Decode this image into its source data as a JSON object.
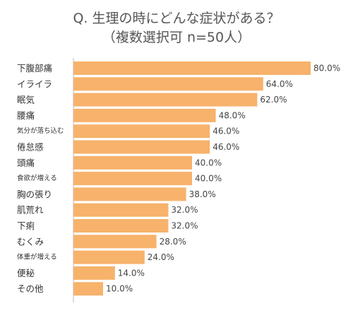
{
  "chart_data": {
    "type": "bar",
    "orientation": "horizontal",
    "title": "Q. 生理の時にどんな症状がある？",
    "subtitle": "（複数選択可 n=50人）",
    "categories": [
      "下腹部痛",
      "イライラ",
      "眠気",
      "腰痛",
      "気分が落ち込む",
      "倦怠感",
      "頭痛",
      "食欲が増える",
      "胸の張り",
      "肌荒れ",
      "下痢",
      "むくみ",
      "体重が増える",
      "便秘",
      "その他"
    ],
    "values": [
      80.0,
      64.0,
      62.0,
      48.0,
      46.0,
      46.0,
      40.0,
      40.0,
      38.0,
      32.0,
      32.0,
      28.0,
      24.0,
      14.0,
      10.0
    ],
    "value_labels": [
      "80.0%",
      "64.0%",
      "62.0%",
      "48.0%",
      "46.0%",
      "46.0%",
      "40.0%",
      "40.0%",
      "38.0%",
      "32.0%",
      "32.0%",
      "28.0%",
      "24.0%",
      "14.0%",
      "10.0%"
    ],
    "xlim": [
      0,
      100
    ],
    "grid": false,
    "bar_color": "#f7b26b",
    "axis_color": "#bbbbbb"
  }
}
